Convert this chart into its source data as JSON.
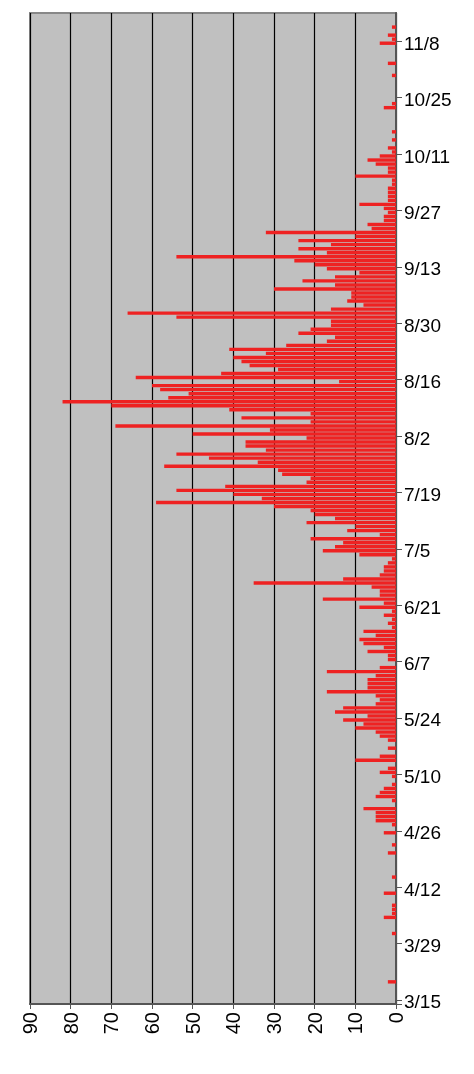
{
  "chart_data": {
    "type": "bar",
    "orientation": "horizontal",
    "categories": [
      null,
      null,
      null,
      null,
      null,
      null,
      null,
      "11/8",
      null,
      null,
      null,
      null,
      null,
      null,
      null,
      null,
      null,
      null,
      null,
      null,
      null,
      "10/25",
      null,
      null,
      null,
      null,
      null,
      null,
      null,
      null,
      null,
      null,
      null,
      null,
      null,
      "10/11",
      null,
      null,
      null,
      null,
      null,
      null,
      null,
      null,
      null,
      null,
      null,
      null,
      null,
      "9/27",
      null,
      null,
      null,
      null,
      null,
      null,
      null,
      null,
      null,
      null,
      null,
      null,
      null,
      "9/13",
      null,
      null,
      null,
      null,
      null,
      null,
      null,
      null,
      null,
      null,
      null,
      null,
      null,
      "8/30",
      null,
      null,
      null,
      null,
      null,
      null,
      null,
      null,
      null,
      null,
      null,
      null,
      null,
      "8/16",
      null,
      null,
      null,
      null,
      null,
      null,
      null,
      null,
      null,
      null,
      null,
      null,
      null,
      "8/2",
      null,
      null,
      null,
      null,
      null,
      null,
      null,
      null,
      null,
      null,
      null,
      null,
      null,
      "7/19",
      null,
      null,
      null,
      null,
      null,
      null,
      null,
      null,
      null,
      null,
      null,
      null,
      null,
      "7/5",
      null,
      null,
      null,
      null,
      null,
      null,
      null,
      null,
      null,
      null,
      null,
      null,
      null,
      "6/21",
      null,
      null,
      null,
      null,
      null,
      null,
      null,
      null,
      null,
      null,
      null,
      null,
      null,
      "6/7",
      null,
      null,
      null,
      null,
      null,
      null,
      null,
      null,
      null,
      null,
      null,
      null,
      null,
      "5/24",
      null,
      null,
      null,
      null,
      null,
      null,
      null,
      null,
      null,
      null,
      null,
      null,
      null,
      "5/10",
      null,
      null,
      null,
      null,
      null,
      null,
      null,
      null,
      null,
      null,
      null,
      null,
      null,
      "4/26",
      null,
      null,
      null,
      null,
      null,
      null,
      null,
      null,
      null,
      null,
      null,
      null,
      null,
      "4/12",
      null,
      null,
      null,
      null,
      null,
      null,
      null,
      null,
      null,
      null,
      null,
      null,
      null,
      "3/29",
      null,
      null,
      null,
      null,
      null,
      null,
      null,
      null,
      null,
      null,
      null,
      null,
      null,
      "3/15"
    ],
    "values": [
      0,
      0,
      0,
      1,
      0,
      2,
      1,
      4,
      0,
      0,
      0,
      0,
      2,
      0,
      0,
      1,
      0,
      0,
      0,
      0,
      0,
      0,
      1,
      3,
      0,
      0,
      0,
      0,
      0,
      1,
      0,
      1,
      0,
      2,
      1,
      4,
      7,
      5,
      2,
      2,
      10,
      1,
      1,
      2,
      2,
      2,
      2,
      9,
      3,
      2,
      3,
      3,
      7,
      6,
      32,
      10,
      24,
      16,
      24,
      17,
      54,
      25,
      20,
      17,
      9,
      15,
      23,
      15,
      30,
      11,
      11,
      12,
      8,
      16,
      66,
      54,
      16,
      16,
      21,
      24,
      15,
      17,
      27,
      41,
      32,
      40,
      38,
      36,
      29,
      43,
      64,
      14,
      60,
      58,
      51,
      56,
      82,
      70,
      41,
      21,
      38,
      21,
      69,
      31,
      50,
      22,
      37,
      37,
      32,
      54,
      46,
      34,
      57,
      29,
      28,
      21,
      22,
      42,
      54,
      40,
      33,
      59,
      30,
      21,
      20,
      15,
      22,
      10,
      12,
      4,
      21,
      13,
      15,
      18,
      9,
      1,
      2,
      3,
      3,
      4,
      13,
      35,
      6,
      4,
      4,
      18,
      3,
      9,
      1,
      3,
      1,
      2,
      1,
      8,
      5,
      9,
      8,
      3,
      7,
      2,
      2,
      0,
      4,
      17,
      5,
      7,
      7,
      7,
      17,
      5,
      4,
      5,
      13,
      15,
      7,
      13,
      8,
      10,
      5,
      4,
      2,
      0,
      2,
      0,
      4,
      10,
      0,
      2,
      4,
      1,
      0,
      1,
      3,
      4,
      5,
      1,
      0,
      8,
      5,
      5,
      5,
      1,
      0,
      3,
      0,
      0,
      1,
      0,
      2,
      0,
      0,
      0,
      0,
      0,
      1,
      0,
      0,
      0,
      3,
      0,
      0,
      1,
      1,
      1,
      3,
      0,
      0,
      0,
      1,
      0,
      0,
      0,
      0,
      0,
      0,
      0,
      0,
      0,
      0,
      0,
      2,
      0,
      0,
      0,
      0,
      0
    ],
    "color": "#ee2222",
    "xlim": [
      90,
      0
    ],
    "xticks": [
      90,
      80,
      70,
      60,
      50,
      40,
      30,
      20,
      10,
      0
    ],
    "grid": "x"
  }
}
